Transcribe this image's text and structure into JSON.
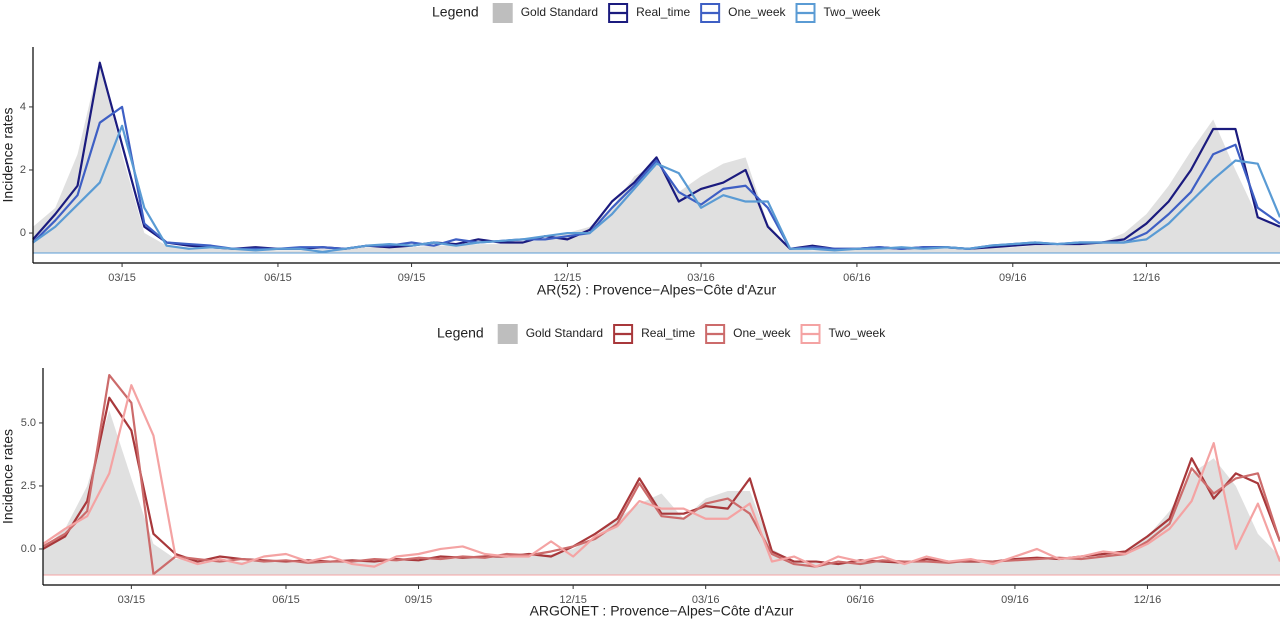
{
  "chart_data": [
    {
      "type": "line",
      "legend_title": "Legend",
      "x_label": "AR(52) : Provence−Alpes−Côte d'Azur",
      "y_label": "Incidence rates",
      "ylim": [
        -0.95,
        5.9
      ],
      "yticks": [
        0,
        2,
        4
      ],
      "categories": [
        null,
        null,
        null,
        null,
        "03/15",
        null,
        null,
        null,
        null,
        null,
        null,
        "06/15",
        null,
        null,
        null,
        null,
        null,
        "09/15",
        null,
        null,
        null,
        null,
        null,
        null,
        "12/15",
        null,
        null,
        null,
        null,
        null,
        "03/16",
        null,
        null,
        null,
        null,
        null,
        null,
        "06/16",
        null,
        null,
        null,
        null,
        null,
        null,
        "09/16",
        null,
        null,
        null,
        null,
        null,
        "12/16",
        null,
        null,
        null,
        null,
        null,
        null
      ],
      "series": [
        {
          "name": "Gold Standard",
          "style": "area",
          "color": "#bebebe",
          "fill": "#e0e0e0",
          "values": [
            0.2,
            0.8,
            2.5,
            5.5,
            2.5,
            0.0,
            -0.4,
            -0.45,
            -0.5,
            -0.5,
            -0.5,
            -0.55,
            -0.55,
            -0.5,
            -0.5,
            -0.45,
            -0.45,
            -0.45,
            -0.4,
            -0.4,
            -0.35,
            -0.35,
            -0.3,
            -0.2,
            0.0,
            0.2,
            0.8,
            1.8,
            2.2,
            1.3,
            1.8,
            2.2,
            2.4,
            0.3,
            -0.5,
            -0.55,
            -0.55,
            -0.5,
            -0.5,
            -0.5,
            -0.5,
            -0.5,
            -0.5,
            -0.45,
            -0.45,
            -0.4,
            -0.4,
            -0.35,
            -0.3,
            0.0,
            0.6,
            1.5,
            2.6,
            3.6,
            2.0,
            0.5,
            0.2
          ]
        },
        {
          "name": "Real_time",
          "style": "line",
          "color": "#1b1b7e",
          "values": [
            -0.2,
            0.6,
            1.5,
            5.4,
            2.8,
            0.2,
            -0.3,
            -0.4,
            -0.45,
            -0.5,
            -0.45,
            -0.5,
            -0.5,
            -0.45,
            -0.5,
            -0.4,
            -0.45,
            -0.4,
            -0.3,
            -0.35,
            -0.2,
            -0.3,
            -0.3,
            -0.1,
            -0.2,
            0.1,
            1.0,
            1.6,
            2.4,
            1.0,
            1.4,
            1.6,
            2.0,
            0.2,
            -0.5,
            -0.4,
            -0.5,
            -0.5,
            -0.45,
            -0.5,
            -0.45,
            -0.45,
            -0.5,
            -0.45,
            -0.4,
            -0.35,
            -0.35,
            -0.35,
            -0.3,
            -0.2,
            0.3,
            1.0,
            2.0,
            3.3,
            3.3,
            0.5,
            0.2
          ]
        },
        {
          "name": "One_week",
          "style": "line",
          "color": "#3e5fc4",
          "values": [
            -0.3,
            0.4,
            1.2,
            3.5,
            4.0,
            0.3,
            -0.3,
            -0.35,
            -0.4,
            -0.5,
            -0.5,
            -0.5,
            -0.45,
            -0.45,
            -0.5,
            -0.4,
            -0.4,
            -0.3,
            -0.4,
            -0.2,
            -0.3,
            -0.25,
            -0.2,
            -0.2,
            -0.1,
            0.0,
            0.8,
            1.5,
            2.3,
            1.3,
            0.9,
            1.4,
            1.5,
            0.8,
            -0.5,
            -0.45,
            -0.5,
            -0.5,
            -0.45,
            -0.5,
            -0.45,
            -0.45,
            -0.5,
            -0.4,
            -0.35,
            -0.3,
            -0.35,
            -0.3,
            -0.3,
            -0.3,
            0.0,
            0.6,
            1.3,
            2.5,
            2.8,
            0.8,
            0.3
          ]
        },
        {
          "name": "Two_week",
          "style": "line",
          "color": "#5a9bd4",
          "values": [
            -0.3,
            0.2,
            0.9,
            1.6,
            3.4,
            0.8,
            -0.4,
            -0.5,
            -0.45,
            -0.5,
            -0.55,
            -0.5,
            -0.5,
            -0.6,
            -0.5,
            -0.4,
            -0.35,
            -0.4,
            -0.3,
            -0.4,
            -0.3,
            -0.25,
            -0.2,
            -0.1,
            0.0,
            0.0,
            0.6,
            1.4,
            2.2,
            1.9,
            0.8,
            1.2,
            1.0,
            1.0,
            -0.5,
            -0.5,
            -0.55,
            -0.5,
            -0.5,
            -0.45,
            -0.5,
            -0.45,
            -0.5,
            -0.4,
            -0.35,
            -0.3,
            -0.35,
            -0.3,
            -0.3,
            -0.3,
            -0.2,
            0.3,
            1.0,
            1.7,
            2.3,
            2.2,
            0.5
          ]
        }
      ]
    },
    {
      "type": "line",
      "legend_title": "Legend",
      "x_label": "ARGONET : Provence−Alpes−Côte d'Azur",
      "y_label": "Incidence rates",
      "ylim": [
        -1.43,
        7.18
      ],
      "yticks": [
        {
          "value": 0,
          "label": "0.0"
        },
        {
          "value": 2.5,
          "label": "2.5"
        },
        {
          "value": 5,
          "label": "5.0"
        }
      ],
      "categories": [
        null,
        null,
        null,
        null,
        "03/15",
        null,
        null,
        null,
        null,
        null,
        null,
        "06/15",
        null,
        null,
        null,
        null,
        null,
        "09/15",
        null,
        null,
        null,
        null,
        null,
        null,
        "12/15",
        null,
        null,
        null,
        null,
        null,
        "03/16",
        null,
        null,
        null,
        null,
        null,
        null,
        "06/16",
        null,
        null,
        null,
        null,
        null,
        null,
        "09/16",
        null,
        null,
        null,
        null,
        null,
        "12/16",
        null,
        null,
        null,
        null,
        null,
        null
      ],
      "series": [
        {
          "name": "Gold Standard",
          "style": "area",
          "color": "#bebebe",
          "fill": "#e0e0e0",
          "values": [
            0.0,
            0.8,
            2.5,
            5.5,
            2.8,
            0.2,
            -0.4,
            -0.45,
            -0.5,
            -0.5,
            -0.5,
            -0.55,
            -0.55,
            -0.5,
            -0.5,
            -0.45,
            -0.45,
            -0.45,
            -0.4,
            -0.4,
            -0.35,
            -0.35,
            -0.3,
            -0.2,
            0.0,
            0.5,
            1.2,
            1.8,
            2.2,
            1.2,
            2.0,
            2.3,
            2.3,
            0.0,
            -0.5,
            -0.55,
            -0.55,
            -0.5,
            -0.5,
            -0.5,
            -0.5,
            -0.5,
            -0.5,
            -0.45,
            -0.45,
            -0.4,
            -0.4,
            -0.35,
            -0.3,
            -0.1,
            0.5,
            1.5,
            3.0,
            3.6,
            2.5,
            0.6,
            -0.3
          ]
        },
        {
          "name": "Real_time",
          "style": "line",
          "color": "#a8383b",
          "values": [
            0.0,
            0.5,
            1.9,
            6.0,
            4.7,
            0.6,
            -0.2,
            -0.5,
            -0.3,
            -0.4,
            -0.45,
            -0.5,
            -0.45,
            -0.5,
            -0.45,
            -0.5,
            -0.4,
            -0.45,
            -0.3,
            -0.35,
            -0.3,
            -0.3,
            -0.2,
            -0.3,
            0.1,
            0.6,
            1.2,
            2.8,
            1.4,
            1.4,
            1.7,
            1.6,
            2.8,
            -0.1,
            -0.5,
            -0.5,
            -0.6,
            -0.45,
            -0.5,
            -0.55,
            -0.4,
            -0.5,
            -0.5,
            -0.5,
            -0.4,
            -0.35,
            -0.4,
            -0.3,
            -0.2,
            -0.1,
            0.5,
            1.2,
            3.6,
            2.0,
            3.0,
            2.6,
            0.3
          ]
        },
        {
          "name": "One_week",
          "style": "line",
          "color": "#cc6b6b",
          "values": [
            0.1,
            0.6,
            1.5,
            6.9,
            5.8,
            -1.0,
            -0.3,
            -0.4,
            -0.5,
            -0.4,
            -0.5,
            -0.45,
            -0.55,
            -0.5,
            -0.5,
            -0.4,
            -0.45,
            -0.35,
            -0.4,
            -0.3,
            -0.35,
            -0.2,
            -0.25,
            -0.1,
            0.1,
            0.4,
            1.0,
            2.6,
            1.3,
            1.2,
            1.8,
            2.0,
            1.4,
            -0.2,
            -0.6,
            -0.7,
            -0.5,
            -0.6,
            -0.45,
            -0.5,
            -0.5,
            -0.55,
            -0.45,
            -0.5,
            -0.45,
            -0.4,
            -0.35,
            -0.4,
            -0.3,
            -0.2,
            0.3,
            1.0,
            3.2,
            2.2,
            2.8,
            3.0,
            0.3
          ]
        },
        {
          "name": "Two_week",
          "style": "line",
          "color": "#f4a3a3",
          "values": [
            0.2,
            0.8,
            1.3,
            3.0,
            6.5,
            4.5,
            -0.3,
            -0.6,
            -0.4,
            -0.6,
            -0.3,
            -0.2,
            -0.5,
            -0.3,
            -0.6,
            -0.7,
            -0.3,
            -0.2,
            0.0,
            0.1,
            -0.2,
            -0.3,
            -0.3,
            0.3,
            -0.3,
            0.5,
            0.9,
            1.9,
            1.6,
            1.6,
            1.2,
            1.2,
            1.8,
            -0.5,
            -0.3,
            -0.7,
            -0.3,
            -0.5,
            -0.3,
            -0.6,
            -0.3,
            -0.5,
            -0.4,
            -0.6,
            -0.3,
            0.0,
            -0.4,
            -0.3,
            -0.1,
            -0.2,
            0.2,
            0.8,
            1.9,
            4.2,
            0.0,
            1.8,
            -0.5
          ]
        }
      ]
    }
  ]
}
